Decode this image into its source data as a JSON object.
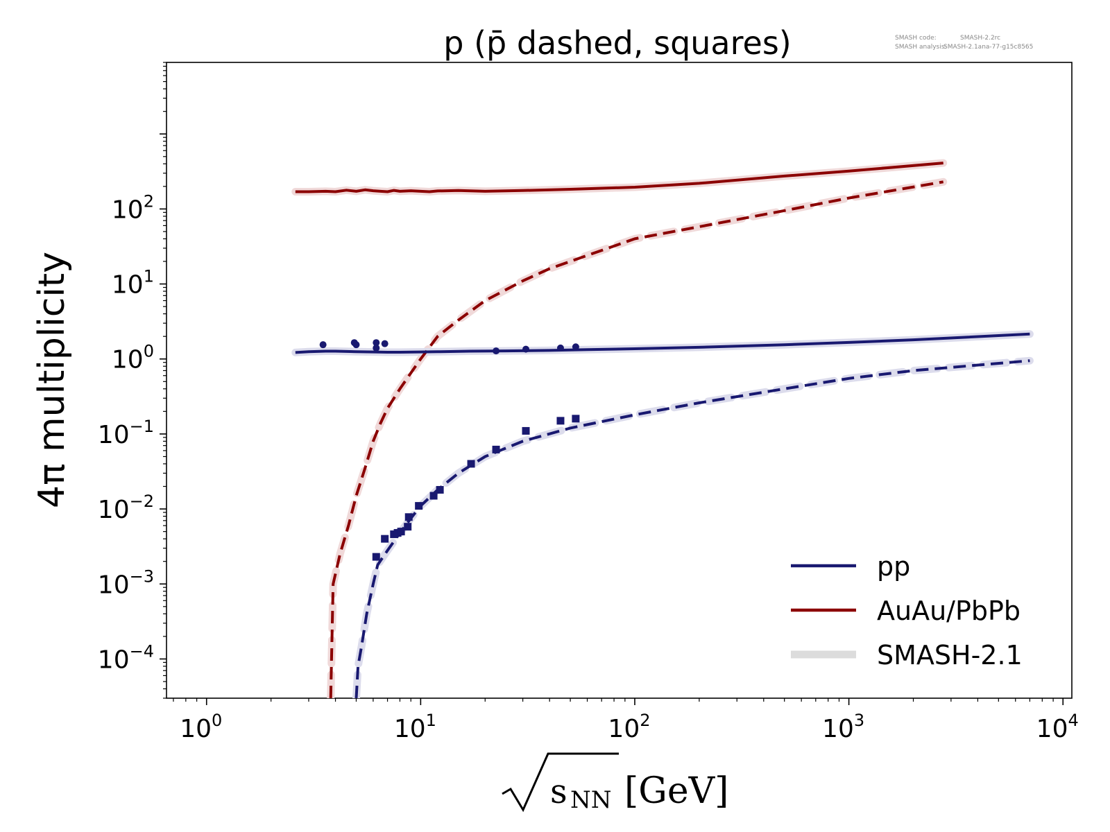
{
  "chart_data": {
    "type": "line",
    "title": "p (p̄ dashed, squares)",
    "xlabel": "√sNN [GeV]",
    "xlabel_radicand": "s",
    "xlabel_subscript": "NN",
    "xlabel_unit": "[GeV]",
    "ylabel": "4π multiplicity",
    "xscale": "log",
    "yscale": "log",
    "xlim": [
      0.65,
      11000
    ],
    "ylim": [
      3e-05,
      9000
    ],
    "grid": false,
    "legend_position": "lower-right",
    "x_tick_labels": [
      {
        "base": "10",
        "exp": "0",
        "value": 1
      },
      {
        "base": "10",
        "exp": "1",
        "value": 10
      },
      {
        "base": "10",
        "exp": "2",
        "value": 100
      },
      {
        "base": "10",
        "exp": "3",
        "value": 1000
      },
      {
        "base": "10",
        "exp": "4",
        "value": 10000
      }
    ],
    "y_tick_labels": [
      {
        "base": "10",
        "exp": "2",
        "value": 100
      },
      {
        "base": "10",
        "exp": "1",
        "value": 10
      },
      {
        "base": "10",
        "exp": "0",
        "value": 1
      },
      {
        "base": "10",
        "exp": "−1",
        "value": 0.1
      },
      {
        "base": "10",
        "exp": "−2",
        "value": 0.01
      },
      {
        "base": "10",
        "exp": "−3",
        "value": 0.001
      },
      {
        "base": "10",
        "exp": "−4",
        "value": 0.0001
      }
    ],
    "annotation": {
      "line1_key": "SMASH code:",
      "line1_val": "SMASH-2.2rc",
      "line2_key": "SMASH analysis:",
      "line2_val": "SMASH-2.1ana-77-g15c8565"
    },
    "legend": [
      {
        "label": "pp",
        "color": "#191970",
        "style": "solid"
      },
      {
        "label": "AuAu/PbPb",
        "color": "#8b0000",
        "style": "solid"
      },
      {
        "label": "SMASH-2.1",
        "color": "#dcdcdc",
        "style": "thick"
      }
    ],
    "series": [
      {
        "key": "aa_p",
        "color": "#8b0000",
        "dashed": false,
        "band": "#f0d9d9",
        "x": [
          2.6,
          3.0,
          3.6,
          4.0,
          4.5,
          5.0,
          5.5,
          6.0,
          6.5,
          7.0,
          7.5,
          8.0,
          9.0,
          10.0,
          11.0,
          12.0,
          15.0,
          20.0,
          30.0,
          50.0,
          100.0,
          200.0,
          500.0,
          1000.0,
          2760.0
        ],
        "y": [
          170,
          170,
          172,
          170,
          178,
          172,
          180,
          175,
          172,
          170,
          177,
          172,
          175,
          172,
          170,
          174,
          176,
          172,
          176,
          183,
          195,
          220,
          275,
          320,
          410
        ]
      },
      {
        "key": "aa_pbar",
        "color": "#8b0000",
        "dashed": true,
        "band": "#f0d9d9",
        "x": [
          3.8,
          3.9,
          4.2,
          4.6,
          5.0,
          5.5,
          6.0,
          6.5,
          7.0,
          8.0,
          9.0,
          10.0,
          12.0,
          15.0,
          20.0,
          30.0,
          40.0,
          60.0,
          100.0,
          200.0,
          500.0,
          1000.0,
          2760.0
        ],
        "y": [
          3e-05,
          0.001,
          0.0025,
          0.006,
          0.015,
          0.035,
          0.08,
          0.14,
          0.22,
          0.4,
          0.65,
          1.0,
          2.0,
          3.3,
          6.0,
          11.0,
          16.0,
          24.0,
          40.0,
          58.0,
          95.0,
          140.0,
          230.0
        ]
      },
      {
        "key": "pp_p",
        "color": "#191970",
        "dashed": false,
        "band": "#dcdcec",
        "x": [
          2.6,
          3.0,
          3.6,
          4.0,
          4.5,
          5.0,
          6.0,
          7.0,
          8.0,
          10.0,
          12.0,
          17.0,
          25.0,
          40.0,
          60.0,
          100.0,
          200.0,
          500.0,
          1000.0,
          2000.0,
          7000.0
        ],
        "y": [
          1.22,
          1.25,
          1.27,
          1.27,
          1.26,
          1.25,
          1.24,
          1.23,
          1.23,
          1.24,
          1.25,
          1.27,
          1.28,
          1.3,
          1.33,
          1.37,
          1.43,
          1.55,
          1.66,
          1.8,
          2.15
        ]
      },
      {
        "key": "pp_pbar",
        "color": "#191970",
        "dashed": true,
        "band": "#dcdcec",
        "x": [
          5.0,
          5.1,
          5.3,
          5.6,
          6.0,
          6.3,
          7.0,
          8.0,
          9.0,
          10.0,
          12.0,
          15.0,
          20.0,
          30.0,
          50.0,
          100.0,
          200.0,
          500.0,
          1000.0,
          2000.0,
          7000.0
        ],
        "y": [
          3e-05,
          8e-05,
          0.00015,
          0.0004,
          0.001,
          0.0018,
          0.0028,
          0.0048,
          0.0075,
          0.011,
          0.018,
          0.03,
          0.05,
          0.08,
          0.12,
          0.18,
          0.26,
          0.4,
          0.55,
          0.7,
          0.95
        ]
      }
    ],
    "data_points": [
      {
        "key": "pp_p_data",
        "marker": "circle",
        "color": "#191970",
        "x": [
          3.5,
          4.9,
          5.0,
          6.2,
          6.2,
          6.8,
          22.5,
          31.0,
          45.0,
          53.0
        ],
        "y": [
          1.55,
          1.65,
          1.55,
          1.65,
          1.4,
          1.6,
          1.28,
          1.35,
          1.4,
          1.45
        ]
      },
      {
        "key": "pp_pbar_data",
        "marker": "square",
        "color": "#191970",
        "x": [
          6.2,
          6.8,
          7.5,
          7.8,
          8.1,
          8.7,
          8.8,
          9.8,
          11.5,
          12.3,
          17.2,
          22.5,
          31.0,
          45.0,
          53.0
        ],
        "y": [
          0.0023,
          0.004,
          0.0046,
          0.0048,
          0.005,
          0.0058,
          0.0078,
          0.011,
          0.015,
          0.018,
          0.04,
          0.062,
          0.11,
          0.15,
          0.16
        ]
      }
    ]
  }
}
